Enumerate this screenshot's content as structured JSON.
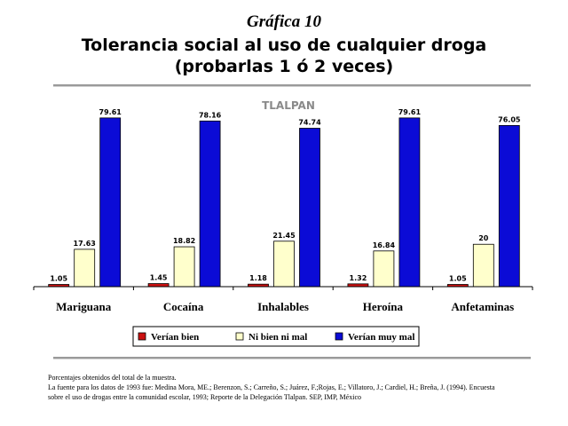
{
  "header": {
    "figure_label": "Gráfica 10",
    "title_line1": "Tolerancia social al uso de cualquier droga",
    "title_line2": "(probarlas 1 ó 2 veces)"
  },
  "chart_data": {
    "type": "bar",
    "title": "TLALPAN",
    "categories": [
      "Mariguana",
      "Cocaína",
      "Inhalables",
      "Heroína",
      "Anfetaminas"
    ],
    "series": [
      {
        "name": "Verían bien",
        "color": "#cc1111",
        "values": [
          1.05,
          1.45,
          1.18,
          1.32,
          1.05
        ]
      },
      {
        "name": "Ni bien ni mal",
        "color": "#ffffcc",
        "values": [
          17.63,
          18.82,
          21.45,
          16.84,
          20
        ]
      },
      {
        "name": "Verían muy mal",
        "color": "#0b0bd6",
        "values": [
          79.61,
          78.16,
          74.74,
          79.61,
          76.05
        ]
      }
    ],
    "data_labels": [
      [
        "1.05",
        "1.45",
        "1.18",
        "1.32",
        "1.05"
      ],
      [
        "17.63",
        "18.82",
        "21.45",
        "16.84",
        "20"
      ],
      [
        "79.61",
        "78.16",
        "74.74",
        "79.61",
        "76.05"
      ]
    ],
    "ylim": [
      0,
      85
    ],
    "grid": false,
    "legend_position": "bottom"
  },
  "notes": {
    "line1": "Porcentajes obtenidos del total de la muestra.",
    "line2": "La fuente para los datos de 1993 fue: Medina Mora, ME.; Berenzon, S.; Carreño, S.; Juárez, F.;Rojas, E.; Villatoro, J.; Cardiel, H.; Breña, J. (1994). Encuesta",
    "line3": "sobre el uso de drogas entre la comunidad escolar, 1993; Reporte de la Delegación Tlalpan. SEP, IMP, México"
  }
}
